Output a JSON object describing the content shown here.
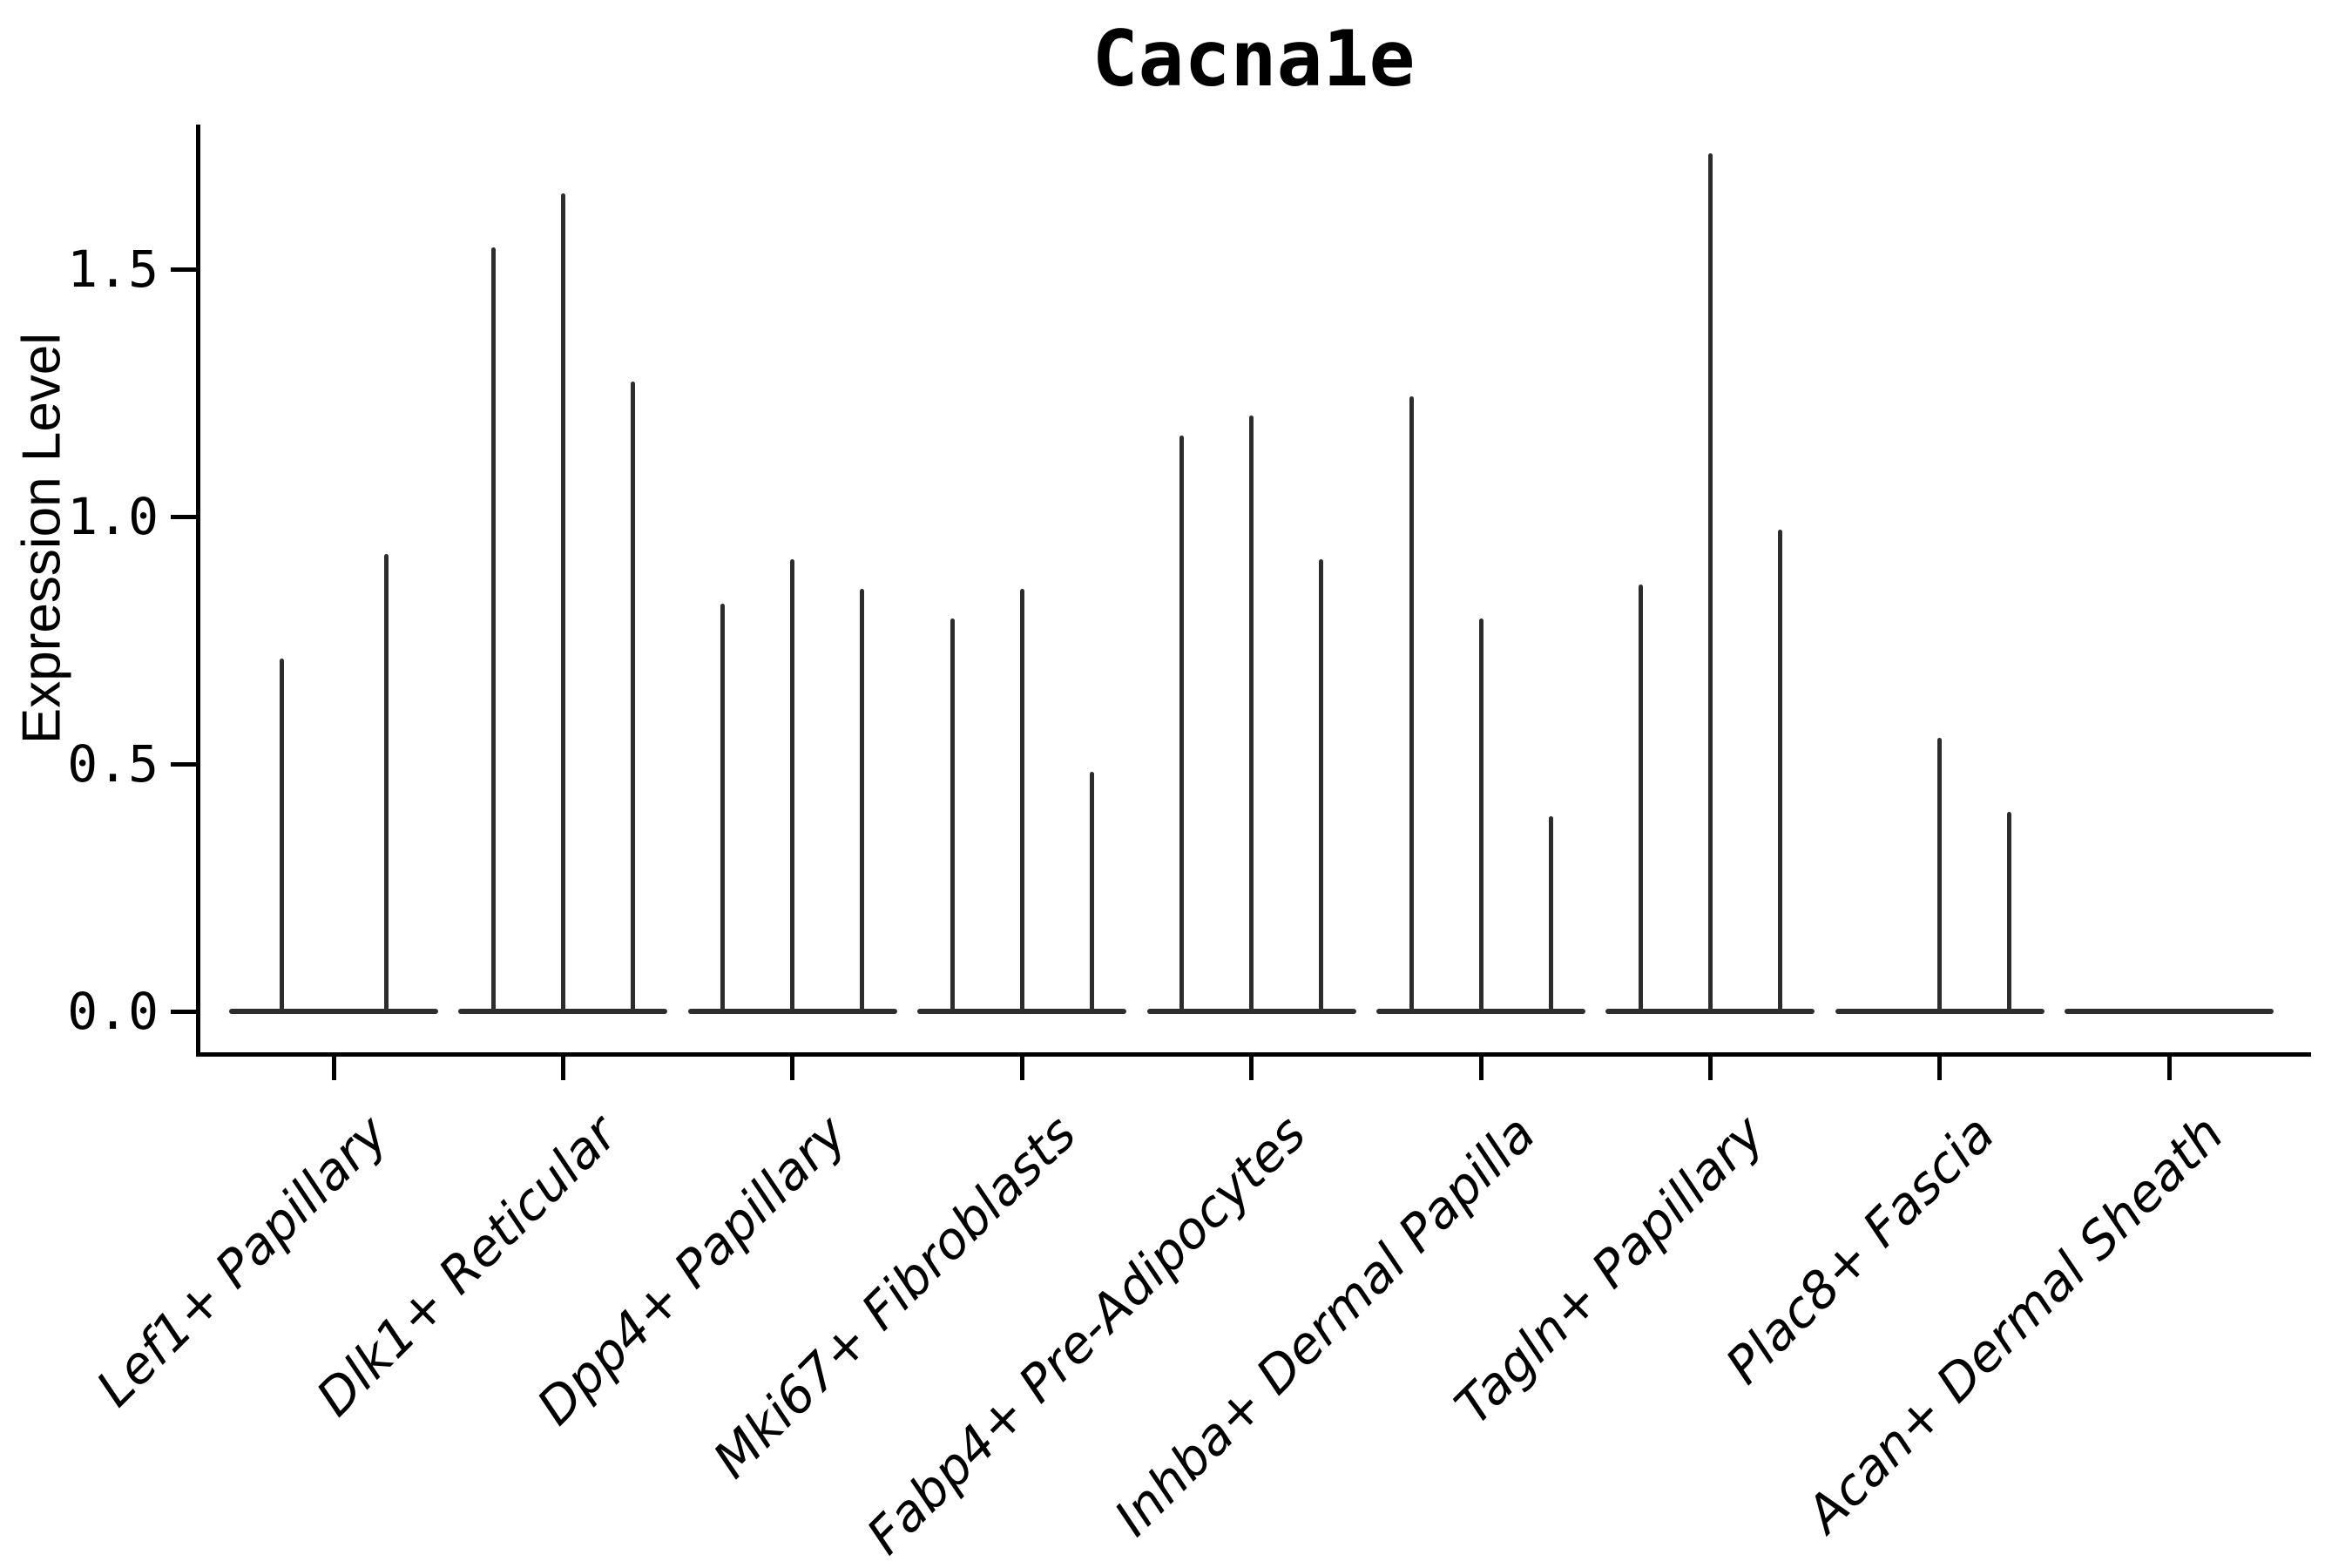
{
  "chart_data": {
    "type": "violin",
    "title": "Cacna1e",
    "ylabel": "Expression Level",
    "xlabel": "",
    "ylim": [
      -0.09,
      1.79
    ],
    "grid": false,
    "legend": "none",
    "yticks": [
      {
        "label": "0.0",
        "value": 0.0
      },
      {
        "label": "0.5",
        "value": 0.5
      },
      {
        "label": "1.0",
        "value": 1.0
      },
      {
        "label": "1.5",
        "value": 1.5
      }
    ],
    "categories": [
      "Lef1+ Papillary",
      "Dlk1+ Reticular",
      "Dpp4+ Papillary",
      "Mki67+ Fibroblasts",
      "Fabp4+ Pre-Adipocytes",
      "Inhba+ Dermal Papilla",
      "Tagln+ Papillary",
      "Plac8+ Fascia",
      "Acan+ Dermal Sheath"
    ],
    "groups": [
      {
        "label": "Lef1+ Papillary",
        "violins": [
          {
            "offset": -60,
            "max": 0.71
          },
          {
            "offset": 60,
            "max": 0.92
          }
        ]
      },
      {
        "label": "Dlk1+ Reticular",
        "violins": [
          {
            "offset": -80,
            "max": 1.54
          },
          {
            "offset": 0,
            "max": 1.65
          },
          {
            "offset": 80,
            "max": 1.27
          }
        ]
      },
      {
        "label": "Dpp4+ Papillary",
        "violins": [
          {
            "offset": -80,
            "max": 0.82
          },
          {
            "offset": 0,
            "max": 0.91
          },
          {
            "offset": 80,
            "max": 0.85
          }
        ]
      },
      {
        "label": "Mki67+ Fibroblasts",
        "violins": [
          {
            "offset": -80,
            "max": 0.79
          },
          {
            "offset": 0,
            "max": 0.85
          },
          {
            "offset": 80,
            "max": 0.48
          }
        ]
      },
      {
        "label": "Fabp4+ Pre-Adipocytes",
        "violins": [
          {
            "offset": -80,
            "max": 1.16
          },
          {
            "offset": 0,
            "max": 1.2
          },
          {
            "offset": 80,
            "max": 0.91
          }
        ]
      },
      {
        "label": "Inhba+ Dermal Papilla",
        "violins": [
          {
            "offset": -80,
            "max": 1.24
          },
          {
            "offset": 0,
            "max": 0.79
          },
          {
            "offset": 80,
            "max": 0.39
          }
        ]
      },
      {
        "label": "Tagln+ Papillary",
        "violins": [
          {
            "offset": -80,
            "max": 0.86
          },
          {
            "offset": 0,
            "max": 1.73
          },
          {
            "offset": 80,
            "max": 0.97
          }
        ]
      },
      {
        "label": "Plac8+ Fascia",
        "violins": [
          {
            "offset": -80,
            "max": 0.0
          },
          {
            "offset": 0,
            "max": 0.55
          },
          {
            "offset": 80,
            "max": 0.4
          }
        ]
      },
      {
        "label": "Acan+ Dermal Sheath",
        "violins": [
          {
            "offset": -80,
            "max": 0.0
          },
          {
            "offset": 0,
            "max": 0.0
          },
          {
            "offset": 80,
            "max": 0.0
          }
        ]
      }
    ],
    "colors": {
      "violin": "#2d2d2d",
      "axis": "#000000",
      "text": "#000000",
      "background": "#ffffff"
    }
  }
}
